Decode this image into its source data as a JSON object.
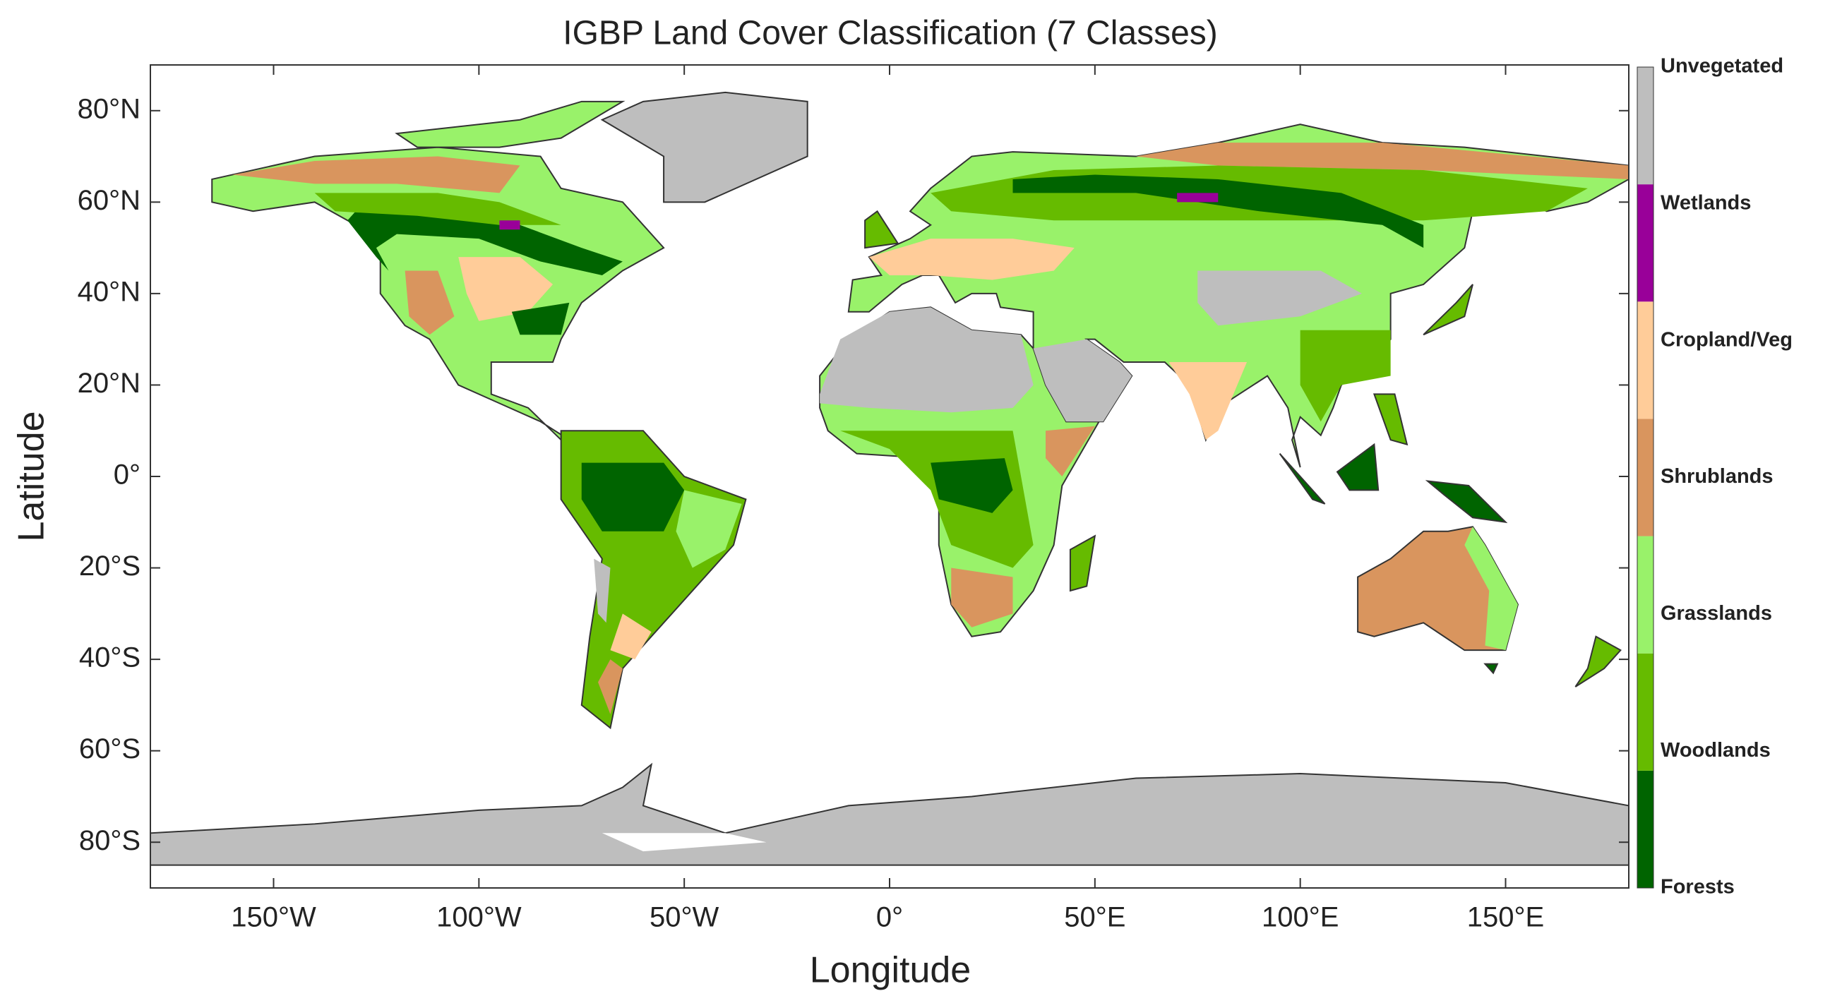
{
  "chart_data": {
    "type": "map",
    "title": "IGBP Land Cover Classification (7 Classes)",
    "x_label": "Longitude",
    "y_label": "Latitude",
    "xlim": [
      -180,
      180
    ],
    "ylim": [
      -90,
      90
    ],
    "xticks": [
      {
        "value": -150,
        "label": "150°W"
      },
      {
        "value": -100,
        "label": "100°W"
      },
      {
        "value": -50,
        "label": "50°W"
      },
      {
        "value": 0,
        "label": "0°"
      },
      {
        "value": 50,
        "label": "50°E"
      },
      {
        "value": 100,
        "label": "100°E"
      },
      {
        "value": 150,
        "label": "150°E"
      }
    ],
    "yticks": [
      {
        "value": 80,
        "label": "80°N"
      },
      {
        "value": 60,
        "label": "60°N"
      },
      {
        "value": 40,
        "label": "40°N"
      },
      {
        "value": 20,
        "label": "20°N"
      },
      {
        "value": 0,
        "label": "0°"
      },
      {
        "value": -20,
        "label": "20°S"
      },
      {
        "value": -40,
        "label": "40°S"
      },
      {
        "value": -60,
        "label": "60°S"
      },
      {
        "value": -80,
        "label": "80°S"
      }
    ],
    "classes": [
      {
        "name": "Forests",
        "color": "#006400"
      },
      {
        "name": "Woodlands",
        "color": "#66bb00"
      },
      {
        "name": "Grasslands",
        "color": "#99f26a"
      },
      {
        "name": "Shrublands",
        "color": "#d9955e"
      },
      {
        "name": "Cropland/Veg",
        "color": "#ffcc99"
      },
      {
        "name": "Wetlands",
        "color": "#990099"
      },
      {
        "name": "Unvegetated",
        "color": "#bebebe"
      }
    ]
  }
}
